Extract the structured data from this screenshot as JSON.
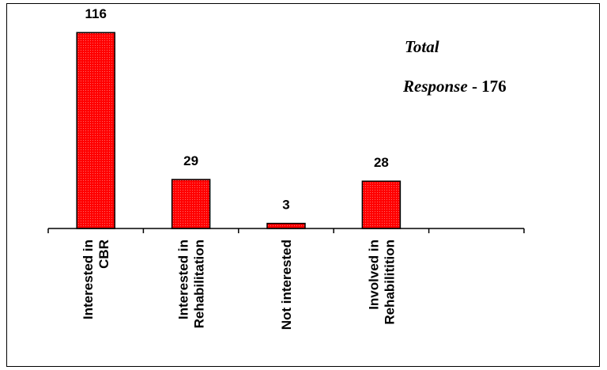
{
  "chart_data": {
    "type": "bar",
    "categories": [
      [
        "Interested in",
        "CBR"
      ],
      [
        "Interested in",
        "Rehabilitation"
      ],
      [
        "Not interested"
      ],
      [
        "Involved in",
        "Rehabilitition"
      ],
      []
    ],
    "values": [
      116,
      29,
      3,
      28,
      null
    ],
    "data_labels": [
      "116",
      "29",
      "3",
      "28",
      ""
    ],
    "ylim": [
      0,
      125
    ],
    "bar_color": "#ff0000",
    "annotation": {
      "line1": "Total",
      "line2_italic": "Response",
      "line2_rest": " - 176"
    },
    "grid": false,
    "legend": "none"
  }
}
